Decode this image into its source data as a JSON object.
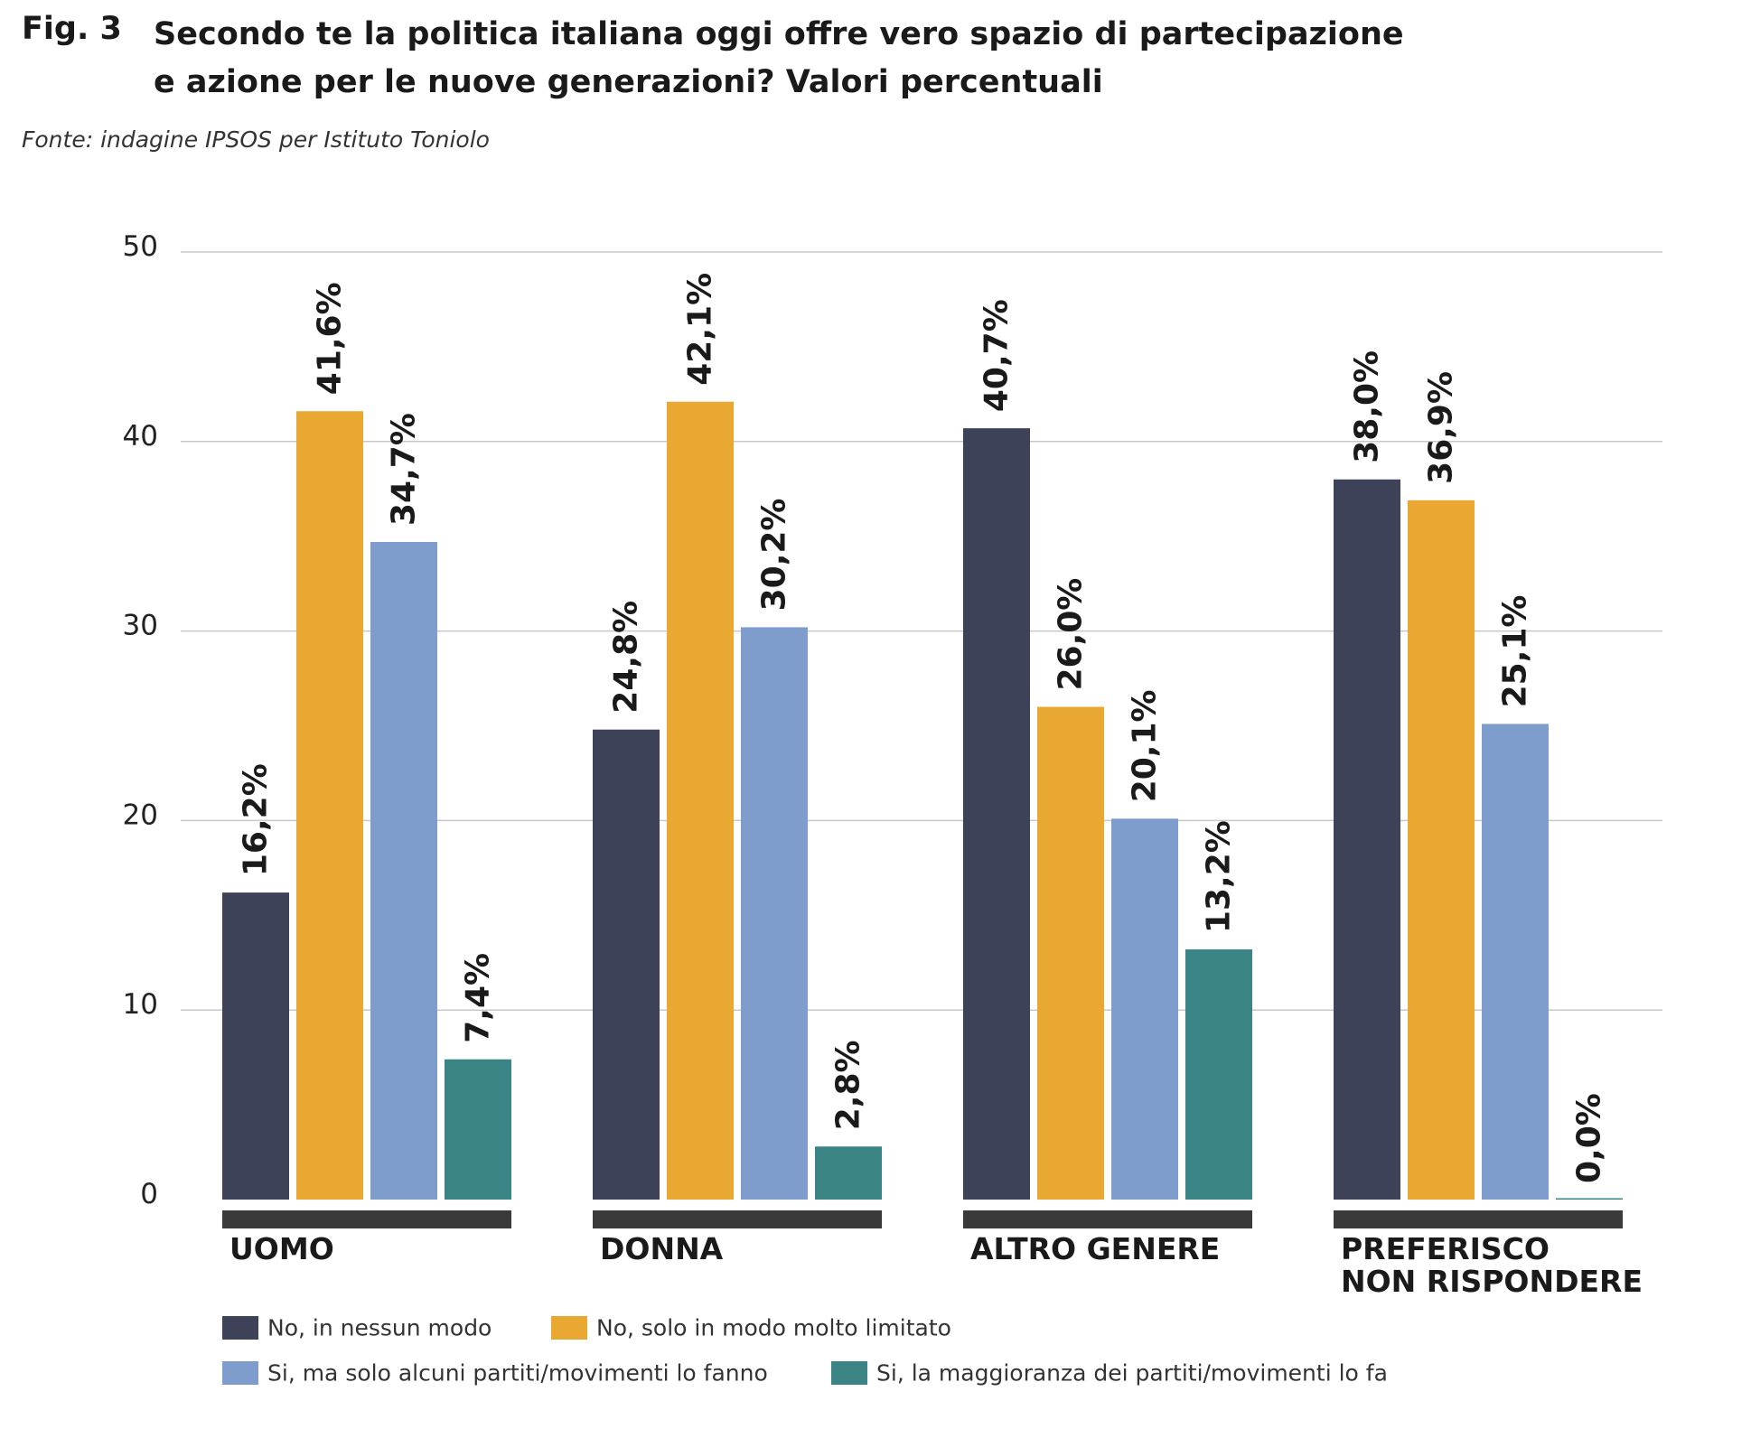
{
  "header": {
    "fig_label": "Fig. 3",
    "title_line1": "Secondo te la politica italiana oggi offre vero spazio di partecipazione",
    "title_line2": "e azione per le nuove generazioni? Valori percentuali",
    "source": "Fonte: indagine IPSOS per Istituto Toniolo"
  },
  "chart_data": {
    "type": "bar",
    "ylim": [
      0,
      50
    ],
    "yticks": [
      "0",
      "10",
      "20",
      "30",
      "40",
      "50"
    ],
    "grid": true,
    "legend_position": "bottom",
    "categories": [
      [
        "UOMO"
      ],
      [
        "DONNA"
      ],
      [
        "ALTRO GENERE"
      ],
      [
        "PREFERISCO",
        "NON RISPONDERE"
      ]
    ],
    "series": [
      {
        "name": "No, in nessun modo",
        "color": "#3d4259",
        "values": [
          16.2,
          24.8,
          40.7,
          38.0
        ],
        "labels": [
          "16,2%",
          "24,8%",
          "40,7%",
          "38,0%"
        ]
      },
      {
        "name": "No, solo in modo molto limitato",
        "color": "#e9a832",
        "values": [
          41.6,
          42.1,
          26.0,
          36.9
        ],
        "labels": [
          "41,6%",
          "42,1%",
          "26,0%",
          "36,9%"
        ]
      },
      {
        "name": "Si, ma solo alcuni partiti/movimenti lo fanno",
        "color": "#7e9ccc",
        "values": [
          34.7,
          30.2,
          20.1,
          25.1
        ],
        "labels": [
          "34,7%",
          "30,2%",
          "20,1%",
          "25,1%"
        ]
      },
      {
        "name": "Si, la maggioranza dei partiti/movimenti lo fa",
        "color": "#3b8485",
        "values": [
          7.4,
          2.8,
          13.2,
          0.0
        ],
        "labels": [
          "7,4%",
          "2,8%",
          "13,2%",
          "0,0%"
        ]
      }
    ]
  }
}
